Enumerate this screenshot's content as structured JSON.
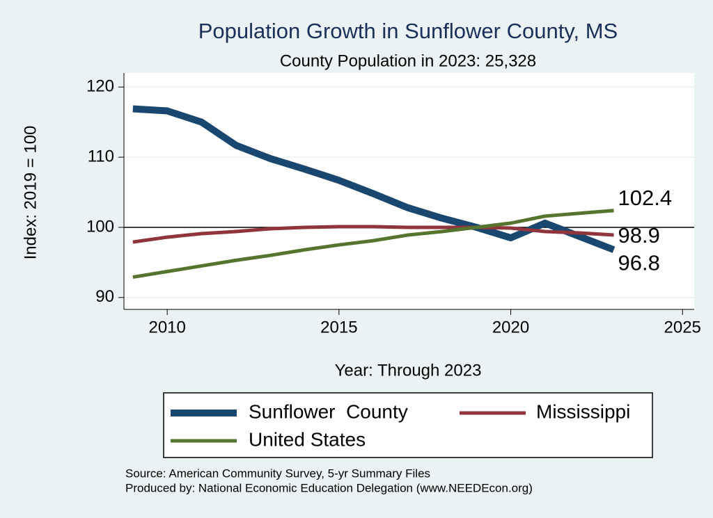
{
  "chart_data": {
    "type": "line",
    "title": "Population Growth in Sunflower County, MS",
    "subtitle": "County Population in 2023: 25,328",
    "x_label": "Year: Through 2023",
    "y_label": "Index: 2019 = 100",
    "x": [
      2009,
      2010,
      2011,
      2012,
      2013,
      2014,
      2015,
      2016,
      2017,
      2018,
      2019,
      2020,
      2021,
      2022,
      2023
    ],
    "series": [
      {
        "name": "Sunflower  County",
        "color": "#1a476f",
        "values": [
          116.9,
          116.6,
          115.0,
          111.7,
          109.8,
          108.3,
          106.7,
          104.8,
          102.8,
          101.3,
          100.0,
          98.5,
          100.6,
          98.7,
          96.8
        ],
        "end_label": "96.8"
      },
      {
        "name": "Mississippi",
        "color": "#90353b",
        "values": [
          97.9,
          98.6,
          99.1,
          99.4,
          99.8,
          100.0,
          100.1,
          100.1,
          100.0,
          100.0,
          100.0,
          99.9,
          99.4,
          99.2,
          98.9
        ],
        "end_label": "98.9"
      },
      {
        "name": "United States",
        "color": "#55752f",
        "values": [
          92.9,
          93.7,
          94.5,
          95.3,
          96.0,
          96.8,
          97.5,
          98.1,
          98.9,
          99.4,
          100.0,
          100.6,
          101.6,
          102.0,
          102.4
        ],
        "end_label": "102.4"
      }
    ],
    "reference_line": 100,
    "xlim": [
      2008.74,
      2025.34
    ],
    "xticks": [
      2010,
      2015,
      2020,
      2025
    ],
    "ylim": [
      88.3,
      122
    ],
    "yticks": [
      90,
      100,
      110,
      120
    ],
    "grid": true,
    "notes": [
      "Source: American Community Survey, 5-yr Summary Files",
      "Produced by: National Economic Education Delegation (www.NEEDEcon.org)"
    ]
  }
}
